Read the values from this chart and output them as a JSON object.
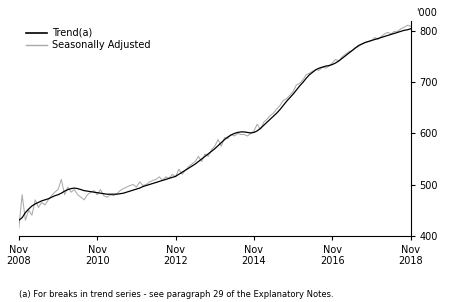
{
  "ylabel": "'000",
  "footnote": "(a) For breaks in trend series - see paragraph 29 of the Explanatory Notes.",
  "legend": [
    "Trend(a)",
    "Seasonally Adjusted"
  ],
  "legend_colors": [
    "#000000",
    "#aaaaaa"
  ],
  "ylim": [
    400,
    820
  ],
  "yticks": [
    400,
    500,
    600,
    700,
    800
  ],
  "xtick_labels": [
    "Nov\n2008",
    "Nov\n2010",
    "Nov\n2012",
    "Nov\n2014",
    "Nov\n2016",
    "Nov\n2018"
  ],
  "xtick_positions": [
    0,
    24,
    48,
    72,
    96,
    120
  ],
  "background_color": "#ffffff",
  "trend_color": "#000000",
  "seasonal_color": "#aaaaaa",
  "trend_lw": 0.9,
  "seasonal_lw": 0.75,
  "trend_data": [
    430,
    435,
    445,
    452,
    458,
    462,
    465,
    468,
    470,
    472,
    475,
    478,
    480,
    483,
    487,
    490,
    492,
    493,
    492,
    490,
    488,
    487,
    486,
    485,
    484,
    483,
    482,
    481,
    481,
    481,
    481,
    482,
    483,
    485,
    487,
    489,
    491,
    493,
    496,
    498,
    500,
    502,
    504,
    506,
    508,
    510,
    512,
    514,
    516,
    520,
    524,
    528,
    532,
    536,
    540,
    545,
    550,
    555,
    560,
    565,
    570,
    576,
    582,
    588,
    593,
    597,
    600,
    602,
    603,
    603,
    602,
    601,
    602,
    605,
    610,
    616,
    622,
    628,
    634,
    640,
    647,
    655,
    663,
    670,
    677,
    685,
    693,
    700,
    708,
    715,
    720,
    725,
    728,
    730,
    732,
    733,
    735,
    738,
    742,
    747,
    752,
    757,
    762,
    767,
    772,
    775,
    778,
    780,
    782,
    784,
    786,
    788,
    790,
    792,
    794,
    796,
    798,
    800,
    802,
    803,
    805
  ],
  "seasonal_data": [
    415,
    480,
    430,
    450,
    440,
    470,
    455,
    465,
    460,
    470,
    478,
    485,
    490,
    510,
    480,
    495,
    485,
    490,
    480,
    475,
    470,
    480,
    485,
    488,
    480,
    490,
    478,
    475,
    480,
    478,
    482,
    488,
    492,
    495,
    498,
    500,
    495,
    505,
    498,
    500,
    505,
    508,
    510,
    515,
    508,
    515,
    512,
    520,
    515,
    530,
    520,
    528,
    535,
    540,
    545,
    555,
    545,
    560,
    555,
    568,
    575,
    588,
    575,
    592,
    590,
    598,
    595,
    600,
    598,
    598,
    595,
    600,
    605,
    618,
    608,
    622,
    628,
    635,
    640,
    648,
    655,
    665,
    668,
    675,
    682,
    695,
    698,
    705,
    715,
    718,
    722,
    725,
    724,
    730,
    728,
    732,
    738,
    745,
    742,
    750,
    755,
    760,
    762,
    768,
    770,
    775,
    778,
    780,
    782,
    788,
    784,
    790,
    795,
    798,
    795,
    800,
    800,
    805,
    808,
    812,
    810
  ]
}
